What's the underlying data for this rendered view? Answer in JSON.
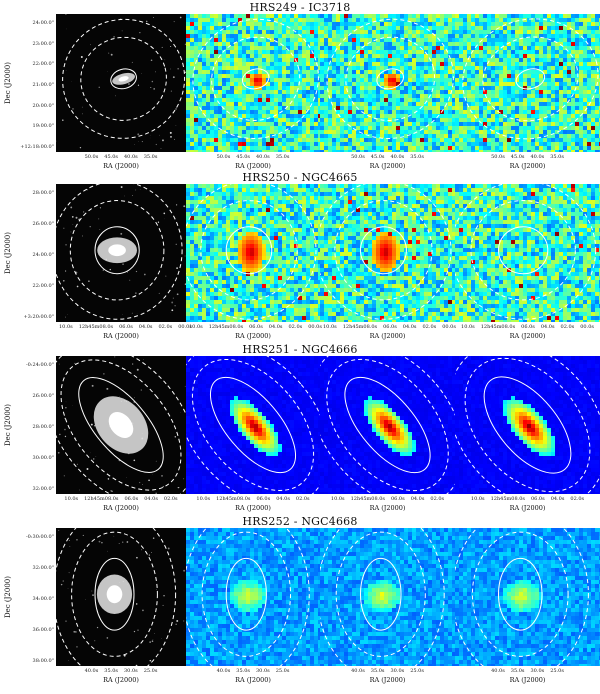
{
  "figure": {
    "rows": [
      {
        "title": "HRS249 - IC3718",
        "y_label": "Dec (J2000)",
        "y_ticks": [
          "24:00.0\"",
          "23:00.0\"",
          "22:00.0\"",
          "21:00.0\"",
          "20:00.0\"",
          "19:00.0\"",
          "+12:18:00.0\""
        ],
        "x_ticks": [
          "50.0s",
          "45.0s",
          "40.0s",
          "35.0s"
        ],
        "x_label": "RA (J2000)",
        "map_style": "noisy",
        "colors": {
          "base": "#7fd08a",
          "hot": "#c40000"
        }
      },
      {
        "title": "HRS250 - NGC4665",
        "y_label": "Dec (J2000)",
        "y_ticks": [
          "28:00.0\"",
          "26:00.0\"",
          "24:00.0\"",
          "22:00.0\"",
          "+3:20:00.0\""
        ],
        "x_ticks": [
          "10.0s",
          "12h45m08.0s",
          "06.0s",
          "04.0s",
          "02.0s",
          "00.0s"
        ],
        "x_label": "RA (J2000)",
        "map_style": "noisy",
        "colors": {
          "base": "#5dc7c0",
          "hot": "#d03000"
        }
      },
      {
        "title": "HRS251 - NGC4666",
        "y_label": "Dec (J2000)",
        "y_ticks": [
          "-0:24:00.0\"",
          "26:00.0\"",
          "28:00.0\"",
          "30:00.0\"",
          "32:00.0\""
        ],
        "x_ticks": [
          "10.0s",
          "12h45m08.0s",
          "06.0s",
          "04.0s",
          "02.0s"
        ],
        "x_label": "RA (J2000)",
        "map_style": "smooth",
        "colors": {
          "base": "#1a3cc8",
          "hot": "#8b0000"
        }
      },
      {
        "title": "HRS252 - NGC4668",
        "y_label": "Dec (J2000)",
        "y_ticks": [
          "-0:30:00.0\"",
          "32:00.0\"",
          "34:00.0\"",
          "36:00.0\"",
          "38:00.0\""
        ],
        "x_ticks": [
          "40.0s",
          "35.0s",
          "30.0s",
          "25.0s"
        ],
        "x_label": "RA (J2000)",
        "map_style": "diffuse",
        "colors": {
          "base": "#2f6fe0",
          "hot": "#ffe640"
        }
      }
    ]
  }
}
